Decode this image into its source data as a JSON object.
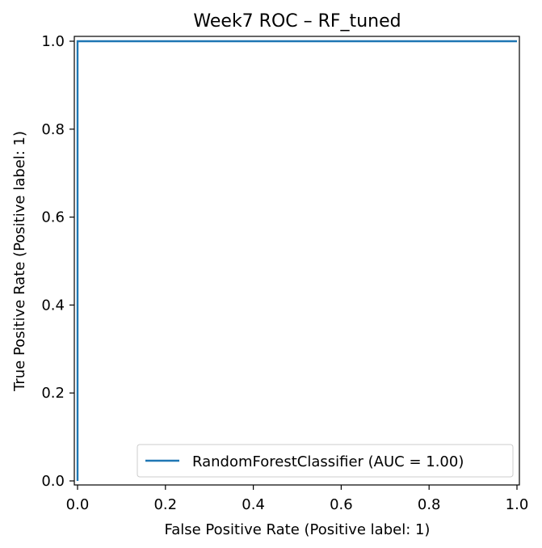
{
  "chart_data": {
    "type": "line",
    "title": "Week7 ROC – RF_tuned",
    "xlabel": "False Positive Rate (Positive label: 1)",
    "ylabel": "True Positive Rate (Positive label: 1)",
    "xlim": [
      0.0,
      1.0
    ],
    "ylim": [
      0.0,
      1.0
    ],
    "xticks": [
      0.0,
      0.2,
      0.4,
      0.6,
      0.8,
      1.0
    ],
    "xtick_labels": [
      "0.0",
      "0.2",
      "0.4",
      "0.6",
      "0.8",
      "1.0"
    ],
    "yticks": [
      0.0,
      0.2,
      0.4,
      0.6,
      0.8,
      1.0
    ],
    "ytick_labels": [
      "0.0",
      "0.2",
      "0.4",
      "0.6",
      "0.8",
      "1.0"
    ],
    "grid": false,
    "legend_position": "lower-right",
    "series": [
      {
        "name": "RandomForestClassifier (AUC = 1.00)",
        "color": "#1f77b4",
        "x": [
          0.0,
          0.0,
          0.0,
          1.0
        ],
        "y": [
          0.0,
          0.0,
          1.0,
          1.0
        ]
      }
    ]
  }
}
